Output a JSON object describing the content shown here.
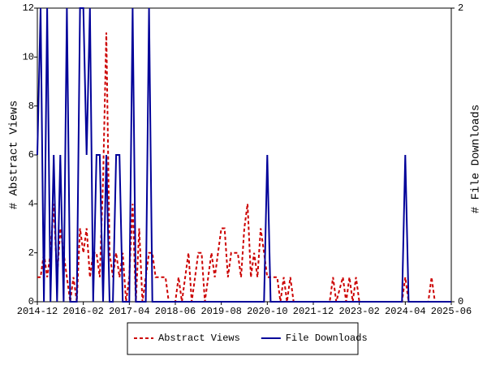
{
  "chart_data": {
    "type": "line",
    "x": [
      "2014-12",
      "2015-01",
      "2015-02",
      "2015-03",
      "2015-04",
      "2015-05",
      "2015-06",
      "2015-07",
      "2015-08",
      "2015-09",
      "2015-10",
      "2015-11",
      "2015-12",
      "2016-01",
      "2016-02",
      "2016-03",
      "2016-04",
      "2016-05",
      "2016-06",
      "2016-07",
      "2016-08",
      "2016-09",
      "2016-10",
      "2016-11",
      "2016-12",
      "2017-01",
      "2017-02",
      "2017-03",
      "2017-04",
      "2017-05",
      "2017-06",
      "2017-07",
      "2017-08",
      "2017-09",
      "2017-10",
      "2017-11",
      "2017-12",
      "2018-03",
      "2018-04",
      "2018-06",
      "2018-07",
      "2018-08",
      "2018-10",
      "2018-11",
      "2018-12",
      "2019-01",
      "2019-02",
      "2019-03",
      "2019-04",
      "2019-05",
      "2019-06",
      "2019-07",
      "2019-08",
      "2019-09",
      "2019-10",
      "2019-11",
      "2020-01",
      "2020-02",
      "2020-03",
      "2020-04",
      "2020-05",
      "2020-06",
      "2020-07",
      "2020-08",
      "2020-09",
      "2020-10",
      "2020-11",
      "2021-01",
      "2021-02",
      "2021-03",
      "2021-04",
      "2021-05",
      "2021-06",
      "2022-05",
      "2022-06",
      "2022-07",
      "2022-09",
      "2022-10",
      "2022-11",
      "2022-12",
      "2023-01",
      "2023-02",
      "2024-03",
      "2024-04",
      "2024-05",
      "2024-11",
      "2024-12",
      "2025-01",
      "2025-06"
    ],
    "series": [
      {
        "name": "Abstract Views",
        "color": "#cc0000",
        "dashed": true,
        "values": [
          1,
          1,
          2,
          1,
          2,
          4,
          1,
          3,
          2,
          1,
          0,
          1,
          0,
          3,
          2,
          3,
          1,
          2,
          2,
          1,
          5,
          11,
          2,
          1,
          2,
          1,
          2,
          0,
          1,
          4,
          0,
          3,
          0,
          1,
          2,
          2,
          1,
          1,
          0,
          0,
          1,
          0,
          2,
          0,
          1,
          2,
          2,
          0,
          1,
          2,
          1,
          2,
          3,
          3,
          1,
          2,
          2,
          1,
          3,
          4,
          1,
          2,
          1,
          3,
          2,
          1,
          1,
          1,
          0,
          1,
          0,
          1,
          0,
          0,
          1,
          0,
          1,
          0,
          1,
          0,
          1,
          0,
          0,
          1,
          0,
          0,
          1,
          0,
          0
        ]
      },
      {
        "name": "File Downloads",
        "color": "#000099",
        "axis": "y2",
        "values": [
          1,
          2,
          0,
          2,
          0,
          1,
          0,
          1,
          0,
          2,
          0,
          0,
          0,
          2,
          2,
          1,
          2,
          0,
          1,
          1,
          0,
          1,
          0,
          0,
          1,
          1,
          0,
          0,
          0,
          2,
          0,
          0,
          0,
          0,
          2,
          0,
          0,
          0,
          0,
          0,
          0,
          0,
          0,
          0,
          0,
          0,
          0,
          0,
          0,
          0,
          0,
          0,
          0,
          0,
          0,
          0,
          0,
          0,
          0,
          0,
          0,
          0,
          0,
          0,
          0,
          1,
          0,
          0,
          0,
          0,
          0,
          0,
          0,
          0,
          0,
          0,
          0,
          0,
          0,
          0,
          0,
          0,
          0,
          1,
          0,
          0,
          0,
          0,
          0
        ]
      }
    ],
    "xlim": [
      "2014-12",
      "2025-06"
    ],
    "xticks": [
      "2014-12",
      "2016-02",
      "2017-04",
      "2018-06",
      "2019-08",
      "2020-10",
      "2021-12",
      "2023-02",
      "2024-04",
      "2025-06"
    ],
    "ylim": [
      0,
      12
    ],
    "yticks": [
      0,
      2,
      4,
      6,
      8,
      10,
      12
    ],
    "y2lim": [
      0,
      2
    ],
    "y2ticks": [
      0,
      2
    ],
    "ylabel": "# Abstract Views",
    "y2label": "# File Downloads",
    "legend": "bottom"
  }
}
